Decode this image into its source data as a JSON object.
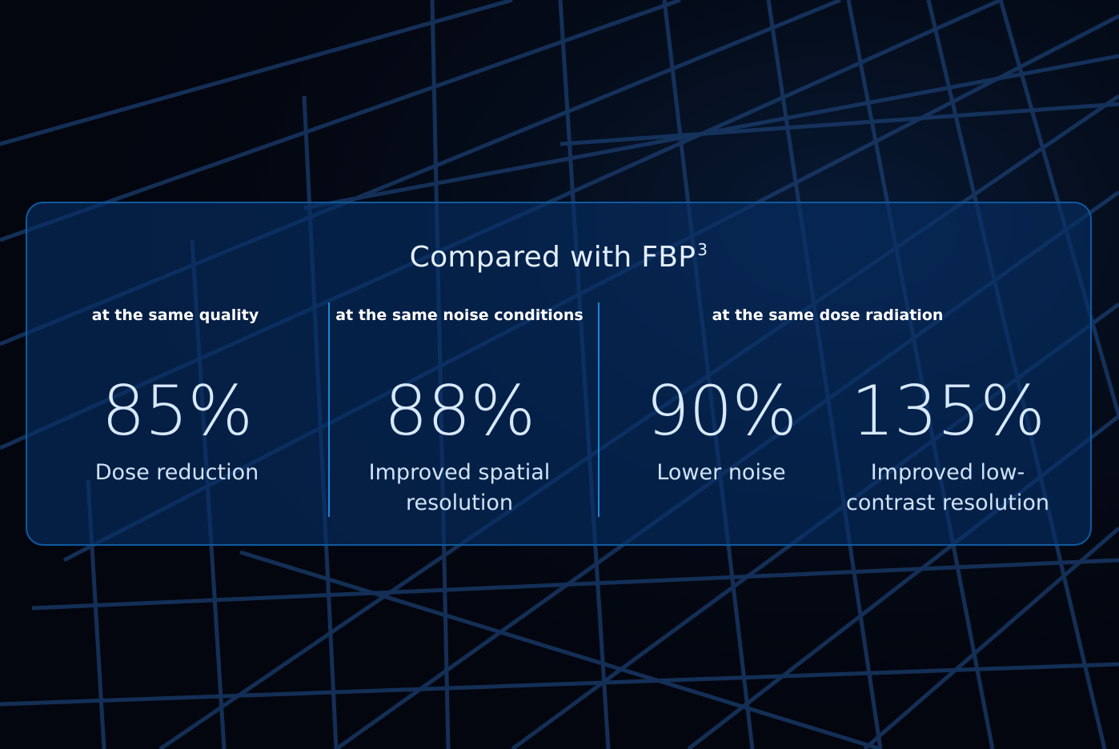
{
  "panel": {
    "title": "Compared with FBP",
    "title_superscript": "3"
  },
  "groups": [
    {
      "header": "at the same quality"
    },
    {
      "header": "at the same noise conditions"
    },
    {
      "header": "at the same dose radiation"
    }
  ],
  "stats": [
    {
      "value": "85%",
      "label": "Dose reduction"
    },
    {
      "value": "88%",
      "label": "Improved spatial resolution"
    },
    {
      "value": "90%",
      "label": "Lower noise"
    },
    {
      "value": "135%",
      "label": "Improved low-contrast resolution"
    }
  ],
  "colors": {
    "background": "#03060f",
    "panel_border": "#0f5aa0",
    "divider": "#1b87d6",
    "value_text": "#d7e9ff"
  }
}
